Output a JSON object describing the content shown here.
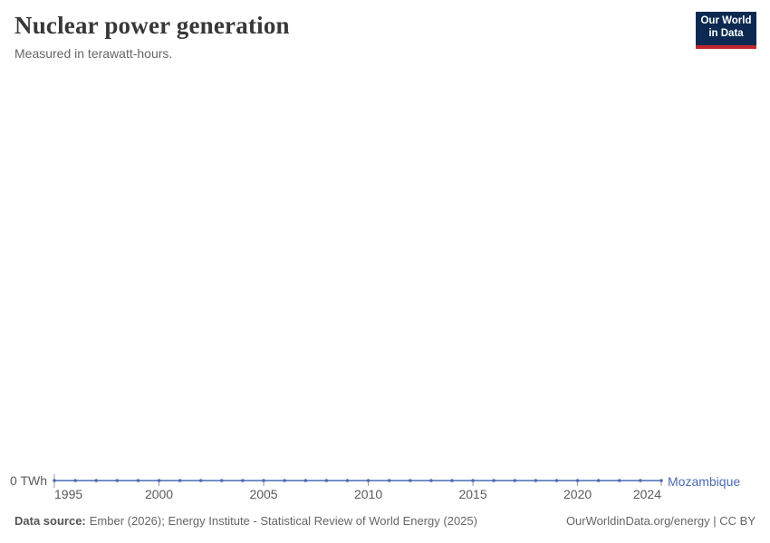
{
  "header": {
    "title": "Nuclear power generation",
    "subtitle": "Measured in terawatt-hours.",
    "logo": {
      "line1": "Our World",
      "line2": "in Data"
    }
  },
  "chart_data": {
    "type": "line",
    "title": "Nuclear power generation",
    "ylabel": "terawatt-hours",
    "unit": "TWh",
    "y_zero_label": "0 TWh",
    "entity_label": "Mozambique",
    "line_color": "#4c6bb3",
    "axis_text_color": "#5b5b5b",
    "tick_color": "#999999",
    "x": [
      1995,
      1996,
      1997,
      1998,
      1999,
      2000,
      2001,
      2002,
      2003,
      2004,
      2005,
      2006,
      2007,
      2008,
      2009,
      2010,
      2011,
      2012,
      2013,
      2014,
      2015,
      2016,
      2017,
      2018,
      2019,
      2020,
      2021,
      2022,
      2023,
      2024
    ],
    "series": [
      {
        "name": "Mozambique",
        "values": [
          0,
          0,
          0,
          0,
          0,
          0,
          0,
          0,
          0,
          0,
          0,
          0,
          0,
          0,
          0,
          0,
          0,
          0,
          0,
          0,
          0,
          0,
          0,
          0,
          0,
          0,
          0,
          0,
          0,
          0
        ]
      }
    ],
    "x_ticks": [
      {
        "label": "1995",
        "year": 1995,
        "anchor": "start"
      },
      {
        "label": "2000",
        "year": 2000,
        "anchor": "middle"
      },
      {
        "label": "2005",
        "year": 2005,
        "anchor": "middle"
      },
      {
        "label": "2010",
        "year": 2010,
        "anchor": "middle"
      },
      {
        "label": "2015",
        "year": 2015,
        "anchor": "middle"
      },
      {
        "label": "2020",
        "year": 2020,
        "anchor": "middle"
      },
      {
        "label": "2024",
        "year": 2024,
        "anchor": "end"
      }
    ],
    "ylim": [
      0,
      0
    ],
    "grid": false,
    "legend_position": "right-of-line-end"
  },
  "footer": {
    "source_label": "Data source:",
    "source_text": "Ember (2026); Energy Institute - Statistical Review of World Energy (2025)",
    "link_text": "OurWorldinData.org/energy | CC BY"
  }
}
